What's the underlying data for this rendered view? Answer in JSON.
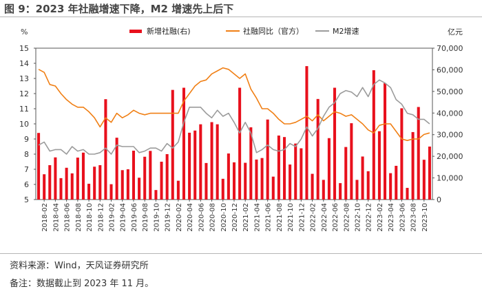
{
  "figure": {
    "title": "图 9：2023 年社融增速下降，M2 增速先上后下",
    "source": "资料来源：Wind，天风证券研究所",
    "note": "备注：数据截止到 2023 年 11 月。"
  },
  "chart_data": {
    "type": "bar+line",
    "left_axis": {
      "unit": "%",
      "min": 5,
      "max": 15,
      "step": 1
    },
    "right_axis": {
      "unit": "亿元",
      "min": 0,
      "max": 70000,
      "step": 10000
    },
    "legend": [
      {
        "name": "新增社融(右)",
        "kind": "bar",
        "color": "#e8101c"
      },
      {
        "name": "社融同比（官方）",
        "kind": "line",
        "color": "#f07f14"
      },
      {
        "name": "M2增速",
        "kind": "line",
        "color": "#9b9b9b"
      }
    ],
    "x_tick_labels": [
      "2018-02",
      "2018-04",
      "2018-06",
      "2018-08",
      "2018-10",
      "2018-12",
      "2019-02",
      "2019-04",
      "2019-06",
      "2019-08",
      "2019-10",
      "2019-12",
      "2020-02",
      "2020-04",
      "2020-06",
      "2020-08",
      "2020-10",
      "2020-12",
      "2021-02",
      "2021-04",
      "2021-06",
      "2021-08",
      "2021-10",
      "2021-12",
      "2022-02",
      "2022-04",
      "2022-06",
      "2022-08",
      "2022-10",
      "2022-12",
      "2023-02",
      "2023-04",
      "2023-06",
      "2023-08",
      "2023-10"
    ],
    "months": [
      "2018-01",
      "2018-02",
      "2018-03",
      "2018-04",
      "2018-05",
      "2018-06",
      "2018-07",
      "2018-08",
      "2018-09",
      "2018-10",
      "2018-11",
      "2018-12",
      "2019-01",
      "2019-02",
      "2019-03",
      "2019-04",
      "2019-05",
      "2019-06",
      "2019-07",
      "2019-08",
      "2019-09",
      "2019-10",
      "2019-11",
      "2019-12",
      "2020-01",
      "2020-02",
      "2020-03",
      "2020-04",
      "2020-05",
      "2020-06",
      "2020-07",
      "2020-08",
      "2020-09",
      "2020-10",
      "2020-11",
      "2020-12",
      "2021-01",
      "2021-02",
      "2021-03",
      "2021-04",
      "2021-05",
      "2021-06",
      "2021-07",
      "2021-08",
      "2021-09",
      "2021-10",
      "2021-11",
      "2021-12",
      "2022-01",
      "2022-02",
      "2022-03",
      "2022-04",
      "2022-05",
      "2022-06",
      "2022-07",
      "2022-08",
      "2022-09",
      "2022-10",
      "2022-11",
      "2022-12",
      "2023-01",
      "2023-02",
      "2023-03",
      "2023-04",
      "2023-05",
      "2023-06",
      "2023-07",
      "2023-08",
      "2023-09",
      "2023-10",
      "2023-11"
    ],
    "series": [
      {
        "name": "新增社融(右)",
        "axis": "right",
        "values": [
          30800,
          11700,
          15900,
          19500,
          9900,
          14700,
          12100,
          19400,
          21700,
          7300,
          15200,
          15900,
          46400,
          7100,
          28600,
          13600,
          14000,
          22600,
          10100,
          19800,
          22500,
          4400,
          17500,
          21000,
          50700,
          8700,
          51700,
          30900,
          31900,
          34800,
          16900,
          35800,
          34800,
          9600,
          21300,
          17200,
          51700,
          17000,
          33400,
          18500,
          19200,
          37000,
          10600,
          29600,
          28900,
          16200,
          25900,
          23700,
          61700,
          11900,
          46500,
          9100,
          28400,
          51700,
          7600,
          24300,
          35300,
          9100,
          19900,
          13100,
          59800,
          31600,
          53800,
          12200,
          15600,
          42200,
          5400,
          31200,
          42800,
          18400,
          24500
        ]
      },
      {
        "name": "社融同比（官方）",
        "axis": "left",
        "values": [
          13.6,
          13.4,
          12.6,
          12.5,
          12.0,
          11.6,
          11.3,
          11.1,
          11.1,
          10.8,
          10.4,
          9.8,
          10.4,
          10.1,
          10.7,
          10.4,
          10.6,
          10.9,
          10.7,
          10.6,
          10.7,
          10.7,
          10.7,
          10.7,
          10.7,
          10.7,
          11.5,
          12.0,
          12.5,
          12.8,
          12.9,
          13.3,
          13.5,
          13.7,
          13.6,
          13.3,
          13.0,
          13.3,
          12.3,
          11.7,
          11.0,
          11.0,
          10.7,
          10.3,
          10.0,
          10.0,
          10.1,
          10.3,
          10.5,
          10.2,
          10.6,
          10.2,
          10.5,
          10.8,
          10.7,
          10.5,
          10.6,
          10.3,
          10.0,
          9.6,
          9.4,
          9.9,
          10.0,
          10.0,
          9.5,
          9.0,
          8.9,
          9.0,
          9.0,
          9.3,
          9.4
        ]
      },
      {
        "name": "M2增速",
        "axis": "left",
        "values": [
          8.6,
          8.8,
          8.2,
          8.3,
          8.3,
          8.0,
          8.5,
          8.2,
          8.3,
          8.0,
          8.0,
          8.1,
          8.4,
          8.0,
          8.6,
          8.5,
          8.5,
          8.5,
          8.1,
          8.2,
          8.4,
          8.4,
          8.2,
          8.7,
          8.4,
          8.8,
          10.1,
          11.1,
          11.1,
          11.1,
          10.7,
          10.4,
          10.9,
          10.5,
          10.7,
          10.1,
          9.4,
          10.1,
          9.4,
          8.1,
          8.3,
          8.6,
          8.3,
          8.2,
          8.3,
          8.7,
          8.5,
          9.0,
          9.8,
          9.2,
          9.7,
          10.5,
          11.1,
          11.4,
          12.0,
          12.2,
          12.1,
          11.8,
          12.4,
          11.8,
          12.6,
          12.9,
          12.7,
          12.4,
          11.6,
          11.3,
          10.7,
          10.6,
          10.3,
          10.3,
          10.0
        ]
      }
    ]
  }
}
